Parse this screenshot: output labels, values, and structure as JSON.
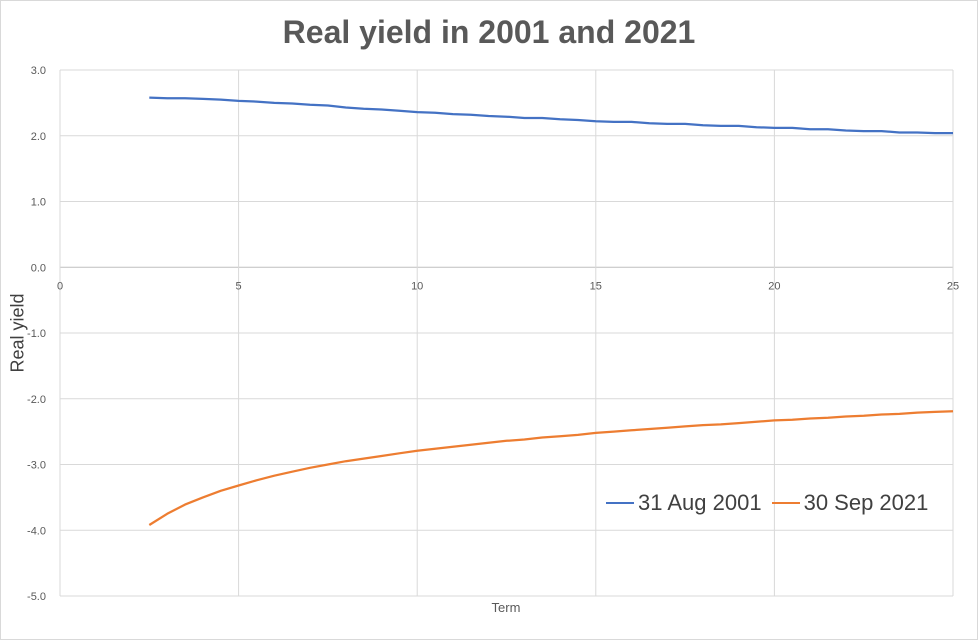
{
  "chart_data": {
    "type": "line",
    "title": "Real yield in 2001 and 2021",
    "xlabel": "Term",
    "ylabel": "Real yield",
    "xlim": [
      0,
      25
    ],
    "ylim": [
      -5,
      3
    ],
    "x_ticks": [
      0,
      5,
      10,
      15,
      20,
      25
    ],
    "y_ticks": [
      "3.0",
      "2.0",
      "1.0",
      "0.0",
      "-1.0",
      "-2.0",
      "-3.0",
      "-4.0",
      "-5.0"
    ],
    "grid": true,
    "legend_position": "bottom-right",
    "series": [
      {
        "name": "31 Aug 2001",
        "color": "#4472c4",
        "x": [
          2.5,
          3,
          3.5,
          4,
          4.5,
          5,
          5.5,
          6,
          6.5,
          7,
          7.5,
          8,
          8.5,
          9,
          9.5,
          10,
          10.5,
          11,
          11.5,
          12,
          12.5,
          13,
          13.5,
          14,
          14.5,
          15,
          15.5,
          16,
          16.5,
          17,
          17.5,
          18,
          18.5,
          19,
          19.5,
          20,
          20.5,
          21,
          21.5,
          22,
          22.5,
          23,
          23.5,
          24,
          24.5,
          25
        ],
        "values": [
          2.58,
          2.57,
          2.57,
          2.56,
          2.55,
          2.53,
          2.52,
          2.5,
          2.49,
          2.47,
          2.46,
          2.43,
          2.41,
          2.4,
          2.38,
          2.36,
          2.35,
          2.33,
          2.32,
          2.3,
          2.29,
          2.27,
          2.27,
          2.25,
          2.24,
          2.22,
          2.21,
          2.21,
          2.19,
          2.18,
          2.18,
          2.16,
          2.15,
          2.15,
          2.13,
          2.12,
          2.12,
          2.1,
          2.1,
          2.08,
          2.07,
          2.07,
          2.05,
          2.05,
          2.04,
          2.04
        ]
      },
      {
        "name": "30 Sep 2021",
        "color": "#ed7d31",
        "x": [
          2.5,
          3,
          3.5,
          4,
          4.5,
          5,
          5.5,
          6,
          6.5,
          7,
          7.5,
          8,
          8.5,
          9,
          9.5,
          10,
          10.5,
          11,
          11.5,
          12,
          12.5,
          13,
          13.5,
          14,
          14.5,
          15,
          15.5,
          16,
          16.5,
          17,
          17.5,
          18,
          18.5,
          19,
          19.5,
          20,
          20.5,
          21,
          21.5,
          22,
          22.5,
          23,
          23.5,
          24,
          24.5,
          25
        ],
        "values": [
          -3.92,
          -3.75,
          -3.61,
          -3.5,
          -3.4,
          -3.32,
          -3.24,
          -3.17,
          -3.11,
          -3.05,
          -3.0,
          -2.95,
          -2.91,
          -2.87,
          -2.83,
          -2.79,
          -2.76,
          -2.73,
          -2.7,
          -2.67,
          -2.64,
          -2.62,
          -2.59,
          -2.57,
          -2.55,
          -2.52,
          -2.5,
          -2.48,
          -2.46,
          -2.44,
          -2.42,
          -2.4,
          -2.39,
          -2.37,
          -2.35,
          -2.33,
          -2.32,
          -2.3,
          -2.29,
          -2.27,
          -2.26,
          -2.24,
          -2.23,
          -2.21,
          -2.2,
          -2.19
        ]
      }
    ]
  }
}
